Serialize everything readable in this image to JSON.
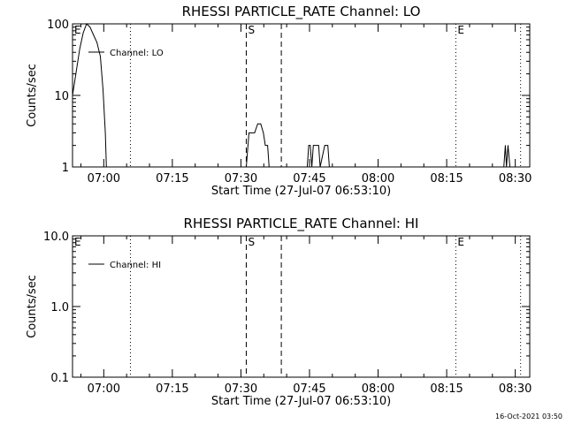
{
  "chart_data": [
    {
      "type": "line",
      "title": "RHESSI PARTICLE_RATE Channel: LO",
      "xlabel": "Start Time (27-Jul-07 06:53:10)",
      "ylabel": "Counts/sec",
      "yscale": "log",
      "ylim": [
        1,
        100
      ],
      "xlim": [
        "06:53:10",
        "08:33:10"
      ],
      "x_ticks": [
        "07:00",
        "07:15",
        "07:30",
        "07:45",
        "08:00",
        "08:15",
        "08:30"
      ],
      "y_ticks": [
        "1",
        "10",
        "100"
      ],
      "legend": "Channel: LO",
      "legend_placement": "top-left",
      "series": [
        {
          "name": "Channel: LO",
          "x": [
            "06:53:10",
            "06:54:00",
            "06:54:45",
            "06:55:30",
            "06:56:15",
            "06:57:00",
            "06:57:45",
            "06:58:30",
            "06:59:15",
            "06:59:50",
            "07:00:20",
            "07:00:35",
            "07:31:10",
            "07:31:45",
            "07:32:20",
            "07:33:00",
            "07:33:40",
            "07:34:20",
            "07:34:55",
            "07:35:20",
            "07:35:50",
            "07:36:10",
            "07:44:30",
            "07:44:50",
            "07:45:10",
            "07:45:30",
            "07:45:50",
            "07:46:10",
            "07:47:00",
            "07:47:20",
            "07:48:20",
            "07:48:40",
            "07:49:00",
            "07:49:20",
            "08:27:30",
            "08:27:50",
            "08:28:05",
            "08:28:25",
            "08:28:50"
          ],
          "values": [
            10,
            22,
            45,
            75,
            100,
            90,
            70,
            55,
            35,
            12,
            3,
            1,
            1,
            3,
            3,
            3,
            4,
            4,
            3,
            2,
            2,
            1,
            1,
            2,
            2,
            1,
            2,
            2,
            2,
            1,
            2,
            2,
            2,
            1,
            1,
            2,
            1,
            2,
            1
          ]
        }
      ],
      "annotations": [
        {
          "text": "E",
          "x": "06:53:10",
          "style": "dotted"
        },
        {
          "text": "",
          "x": "07:05:50",
          "style": "dotted"
        },
        {
          "text": "S",
          "x": "07:31:10",
          "style": "dashed"
        },
        {
          "text": "",
          "x": "07:38:50",
          "style": "dashed"
        },
        {
          "text": "E",
          "x": "08:17:00",
          "style": "dotted"
        },
        {
          "text": "",
          "x": "08:31:10",
          "style": "dotted"
        }
      ]
    },
    {
      "type": "line",
      "title": "RHESSI PARTICLE_RATE Channel: HI",
      "xlabel": "Start Time (27-Jul-07 06:53:10)",
      "ylabel": "Counts/sec",
      "yscale": "log",
      "ylim": [
        0.1,
        10
      ],
      "xlim": [
        "06:53:10",
        "08:33:10"
      ],
      "x_ticks": [
        "07:00",
        "07:15",
        "07:30",
        "07:45",
        "08:00",
        "08:15",
        "08:30"
      ],
      "y_ticks": [
        "0.1",
        "1.0",
        "10.0"
      ],
      "legend": "Channel: HI",
      "legend_placement": "top-left",
      "series": [
        {
          "name": "Channel: HI",
          "x": [],
          "values": []
        }
      ],
      "annotations": [
        {
          "text": "E",
          "x": "06:53:10",
          "style": "dotted"
        },
        {
          "text": "",
          "x": "07:05:50",
          "style": "dotted"
        },
        {
          "text": "S",
          "x": "07:31:10",
          "style": "dashed"
        },
        {
          "text": "",
          "x": "07:38:50",
          "style": "dashed"
        },
        {
          "text": "E",
          "x": "08:17:00",
          "style": "dotted"
        },
        {
          "text": "",
          "x": "08:31:10",
          "style": "dotted"
        }
      ]
    }
  ],
  "footer": {
    "timestamp": "16-Oct-2021 03:50"
  }
}
